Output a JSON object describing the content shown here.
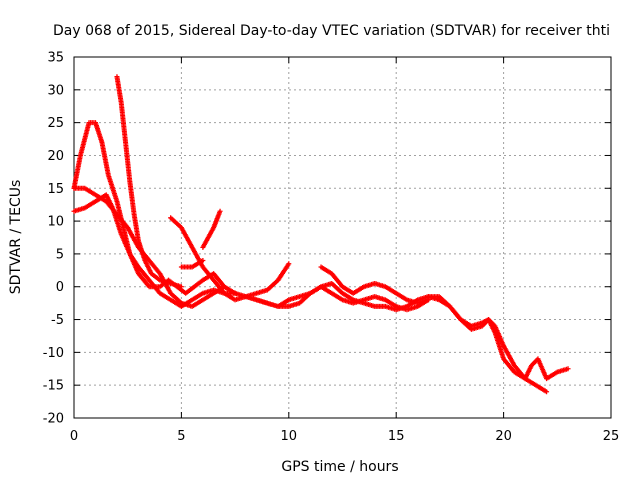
{
  "chart_data": {
    "type": "scatter",
    "title": "Day 068 of 2015, Sidereal Day-to-day VTEC variation (SDTVAR) for receiver thti",
    "xlabel": "GPS time / hours",
    "ylabel": "SDTVAR / TECUs",
    "xlim": [
      0,
      25
    ],
    "ylim": [
      -20,
      35
    ],
    "xticks": [
      0,
      5,
      10,
      15,
      20,
      25
    ],
    "yticks": [
      -20,
      -15,
      -10,
      -5,
      0,
      5,
      10,
      15,
      20,
      25,
      30,
      35
    ],
    "grid": true,
    "marker": "+",
    "color": "#ff0000",
    "series": [
      {
        "name": "trace-1",
        "points": [
          [
            0,
            15
          ],
          [
            0.3,
            20
          ],
          [
            0.7,
            25
          ],
          [
            1.0,
            25
          ],
          [
            1.3,
            22
          ],
          [
            1.6,
            17
          ],
          [
            2.0,
            13
          ],
          [
            2.3,
            9
          ],
          [
            2.6,
            5
          ],
          [
            3.0,
            2
          ],
          [
            3.5,
            0
          ],
          [
            4.0,
            0
          ],
          [
            4.4,
            1
          ],
          [
            4.8,
            0
          ],
          [
            5.2,
            -1
          ],
          [
            5.6,
            0
          ],
          [
            6.0,
            1
          ],
          [
            6.5,
            2
          ],
          [
            7.0,
            0
          ]
        ]
      },
      {
        "name": "trace-2",
        "points": [
          [
            0,
            11.5
          ],
          [
            0.5,
            12
          ],
          [
            1.0,
            13
          ],
          [
            1.5,
            14
          ],
          [
            1.8,
            12
          ],
          [
            2.2,
            8
          ],
          [
            2.6,
            5
          ],
          [
            3.0,
            3
          ],
          [
            3.5,
            1
          ],
          [
            4.0,
            -1
          ],
          [
            4.5,
            -2
          ],
          [
            5.0,
            -3
          ],
          [
            5.5,
            -2
          ],
          [
            6.0,
            -1
          ],
          [
            6.5,
            -0.5
          ],
          [
            7.0,
            -1
          ],
          [
            7.5,
            -1
          ]
        ]
      },
      {
        "name": "trace-3",
        "points": [
          [
            0,
            15
          ],
          [
            0.5,
            15
          ],
          [
            1.0,
            14
          ],
          [
            1.5,
            13
          ],
          [
            2.0,
            11
          ],
          [
            2.5,
            9
          ],
          [
            3.0,
            6
          ],
          [
            3.5,
            4
          ],
          [
            4.0,
            2
          ],
          [
            4.5,
            -1
          ],
          [
            5.0,
            -2.5
          ],
          [
            5.5,
            -3
          ],
          [
            6.0,
            -2
          ],
          [
            6.5,
            -1
          ],
          [
            7.0,
            0
          ],
          [
            7.5,
            -1
          ]
        ]
      },
      {
        "name": "trace-4",
        "points": [
          [
            2.0,
            32
          ],
          [
            2.2,
            28
          ],
          [
            2.4,
            22
          ],
          [
            2.6,
            16
          ],
          [
            2.8,
            11
          ],
          [
            3.0,
            7
          ],
          [
            3.3,
            4
          ],
          [
            3.6,
            2
          ],
          [
            4.0,
            1
          ],
          [
            4.5,
            0.5
          ],
          [
            5.0,
            0
          ]
        ]
      },
      {
        "name": "trace-5",
        "points": [
          [
            4.5,
            10.5
          ],
          [
            5.0,
            9
          ],
          [
            5.5,
            6
          ],
          [
            6.0,
            3
          ],
          [
            6.5,
            1
          ],
          [
            7.0,
            -1
          ],
          [
            7.5,
            -2
          ],
          [
            8.0,
            -1.5
          ],
          [
            8.5,
            -2
          ],
          [
            9.0,
            -2.5
          ],
          [
            9.5,
            -3
          ],
          [
            10.0,
            -2
          ],
          [
            10.5,
            -1.5
          ],
          [
            11.0,
            -1
          ],
          [
            11.5,
            0
          ],
          [
            12.0,
            0.5
          ],
          [
            12.5,
            -1
          ],
          [
            13.0,
            -2
          ],
          [
            13.5,
            -2.5
          ],
          [
            14.0,
            -3
          ],
          [
            14.5,
            -3
          ],
          [
            15.0,
            -3.5
          ],
          [
            15.5,
            -3
          ],
          [
            16.0,
            -2
          ],
          [
            16.5,
            -1.5
          ],
          [
            17.0,
            -2
          ],
          [
            17.5,
            -3
          ],
          [
            18.0,
            -5
          ],
          [
            18.5,
            -6
          ],
          [
            19.0,
            -5.5
          ],
          [
            19.3,
            -5
          ],
          [
            19.6,
            -6
          ],
          [
            20.0,
            -9
          ],
          [
            20.5,
            -12
          ],
          [
            21.0,
            -14
          ],
          [
            21.5,
            -15
          ],
          [
            22.0,
            -16
          ]
        ]
      },
      {
        "name": "trace-6",
        "points": [
          [
            5.0,
            3
          ],
          [
            5.5,
            3
          ],
          [
            6.0,
            4
          ]
        ]
      },
      {
        "name": "trace-7",
        "points": [
          [
            6.0,
            6
          ],
          [
            6.5,
            9
          ],
          [
            6.8,
            11.5
          ]
        ]
      },
      {
        "name": "trace-8",
        "points": [
          [
            7.5,
            -1
          ],
          [
            8.0,
            -1.5
          ],
          [
            8.5,
            -1
          ],
          [
            9.0,
            -0.5
          ],
          [
            9.5,
            1
          ],
          [
            10.0,
            3.5
          ]
        ]
      },
      {
        "name": "trace-9",
        "points": [
          [
            8.0,
            -1.5
          ],
          [
            8.5,
            -2
          ],
          [
            9.0,
            -2.5
          ],
          [
            9.5,
            -3
          ],
          [
            10.0,
            -3
          ],
          [
            10.5,
            -2.5
          ],
          [
            11.0,
            -1
          ],
          [
            11.5,
            0
          ],
          [
            12.0,
            -1
          ],
          [
            12.5,
            -2
          ],
          [
            13.0,
            -2.5
          ],
          [
            13.5,
            -2
          ],
          [
            14.0,
            -1.5
          ],
          [
            14.5,
            -2
          ],
          [
            15.0,
            -3
          ],
          [
            15.5,
            -3.5
          ],
          [
            16.0,
            -3
          ],
          [
            16.5,
            -2
          ]
        ]
      },
      {
        "name": "trace-10",
        "points": [
          [
            11.5,
            3
          ],
          [
            12.0,
            2
          ],
          [
            12.5,
            0
          ],
          [
            13.0,
            -1
          ],
          [
            13.5,
            0
          ],
          [
            14.0,
            0.5
          ],
          [
            14.5,
            0
          ],
          [
            15.0,
            -1
          ],
          [
            15.5,
            -2
          ],
          [
            16.0,
            -2.5
          ],
          [
            16.5,
            -2
          ]
        ]
      },
      {
        "name": "trace-11",
        "points": [
          [
            16.5,
            -1.5
          ],
          [
            17.0,
            -1.5
          ],
          [
            17.5,
            -3
          ],
          [
            18.0,
            -5
          ],
          [
            18.5,
            -6.5
          ],
          [
            19.0,
            -6
          ],
          [
            19.3,
            -5
          ],
          [
            19.6,
            -7
          ],
          [
            20.0,
            -11
          ],
          [
            20.5,
            -13
          ],
          [
            21.0,
            -14
          ],
          [
            21.3,
            -12
          ],
          [
            21.6,
            -11
          ],
          [
            22.0,
            -14
          ],
          [
            22.5,
            -13
          ],
          [
            23.0,
            -12.5
          ]
        ]
      }
    ]
  }
}
